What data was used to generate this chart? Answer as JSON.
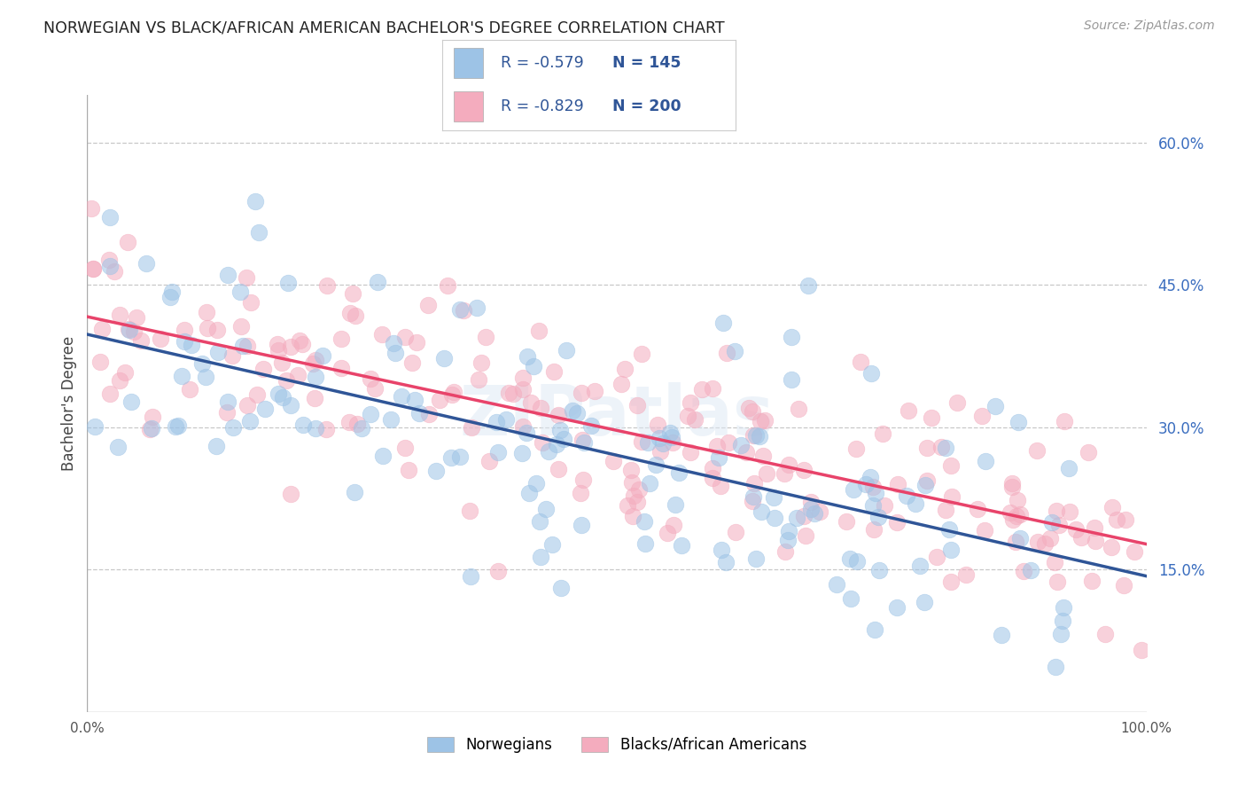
{
  "title": "NORWEGIAN VS BLACK/AFRICAN AMERICAN BACHELOR'S DEGREE CORRELATION CHART",
  "source": "Source: ZipAtlas.com",
  "ylabel": "Bachelor's Degree",
  "xlim": [
    0,
    1
  ],
  "ylim": [
    0.0,
    0.65
  ],
  "x_ticks": [
    0.0,
    0.25,
    0.5,
    0.75,
    1.0
  ],
  "x_tick_labels": [
    "0.0%",
    "",
    "",
    "",
    "100.0%"
  ],
  "y_tick_labels_right": [
    "15.0%",
    "30.0%",
    "45.0%",
    "60.0%"
  ],
  "y_tick_vals_right": [
    0.15,
    0.3,
    0.45,
    0.6
  ],
  "watermark": "ZIPatlas",
  "legend_r1": "-0.579",
  "legend_n1": "145",
  "legend_r2": "-0.829",
  "legend_n2": "200",
  "blue_scatter_color": "#9DC3E6",
  "pink_scatter_color": "#F4ACBE",
  "line_blue": "#2F5597",
  "line_pink": "#E8436A",
  "grid_color": "#c8c8c8",
  "background_color": "#ffffff",
  "title_fontsize": 12.5,
  "R_blue": -0.579,
  "N_blue": 145,
  "R_pink": -0.829,
  "N_pink": 200,
  "scatter_size": 180,
  "scatter_alpha": 0.55,
  "line_blue_intercept": 0.385,
  "line_blue_slope": -0.225,
  "line_pink_intercept": 0.42,
  "line_pink_slope": -0.24
}
